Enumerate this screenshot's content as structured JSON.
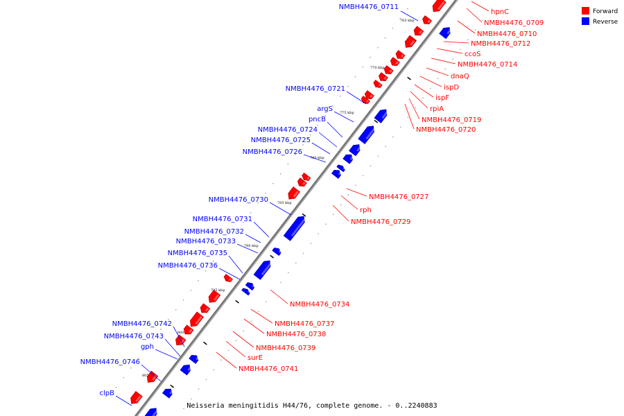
{
  "caption": "Neisseria meningitidis H44/76, complete genome. - 0..2240883",
  "legend": {
    "items": [
      {
        "label": "Forward",
        "color": "#ff0000"
      },
      {
        "label": "Reverse",
        "color": "#0000ff"
      }
    ]
  },
  "colors": {
    "forward": "#ff0000",
    "reverse": "#0000ff",
    "backbone": "#888888"
  },
  "ticks": [
    "765 kbp",
    "770 kbp",
    "775 kbp",
    "780 kbp",
    "785 kbp",
    "790 kbp",
    "795 kbp",
    "800 kbp",
    "805 kbp"
  ],
  "forward_genes": [
    "hpnC",
    "NMBH4476_0709",
    "NMBH4476_0710",
    "NMBH4476_0712",
    "ccoS",
    "NMBH4476_0714",
    "dnaQ",
    "ispD",
    "ispF",
    "rpiA",
    "NMBH4476_0719",
    "NMBH4476_0720",
    "NMBH4476_0727",
    "rph",
    "NMBH4476_0729",
    "NMBH4476_0734",
    "NMBH4476_0737",
    "NMBH4476_0738",
    "NMBH4476_0739",
    "surE",
    "NMBH4476_0741"
  ],
  "reverse_genes": [
    "NMBH4476_0711",
    "NMBH4476_0721",
    "argS",
    "pncB",
    "NMBH4476_0724",
    "NMBH4476_0725",
    "NMBH4476_0726",
    "NMBH4476_0730",
    "NMBH4476_0731",
    "NMBH4476_0732",
    "NMBH4476_0733",
    "NMBH4476_0735",
    "NMBH4476_0736",
    "NMBH4476_0742",
    "NMBH4476_0743",
    "gph",
    "NMBH4476_0746",
    "clpB"
  ]
}
